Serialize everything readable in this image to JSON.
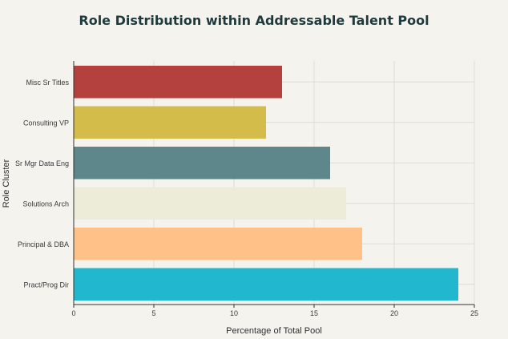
{
  "chart_data": {
    "type": "bar",
    "orientation": "horizontal",
    "title": "Role Distribution within Addressable Talent Pool",
    "xlabel": "Percentage of Total Pool",
    "ylabel": "Role Cluster",
    "xlim": [
      0,
      25
    ],
    "xticks": [
      0,
      5,
      10,
      15,
      20,
      25
    ],
    "grid": true,
    "categories": [
      "Misc Sr Titles",
      "Consulting VP",
      "Sr Mgr Data Eng",
      "Solutions Arch",
      "Principal & DBA",
      "Pract/Prog Dir"
    ],
    "values": [
      13,
      12,
      16,
      17,
      18,
      24
    ],
    "colors": [
      "#b5413f",
      "#d4bc4a",
      "#5d878a",
      "#ececd8",
      "#ffc187",
      "#21b8cf"
    ]
  }
}
